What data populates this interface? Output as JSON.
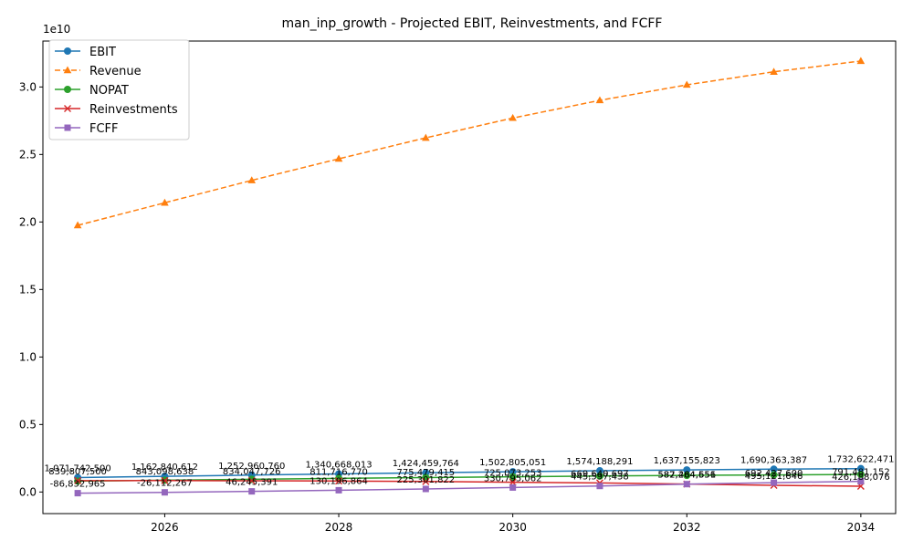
{
  "chart_data": {
    "type": "line",
    "title": "man_inp_growth - Projected EBIT, Reinvestments, and FCFF",
    "xlabel": "",
    "ylabel": "",
    "y_offset_label": "1e10",
    "x": [
      2025,
      2026,
      2027,
      2028,
      2029,
      2030,
      2031,
      2032,
      2033,
      2034
    ],
    "xlim": [
      2024.6,
      2034.4
    ],
    "ylim": [
      -1600000000.0,
      33400000000.0
    ],
    "x_ticks": [
      2026,
      2028,
      2030,
      2032,
      2034
    ],
    "y_ticks": [
      0,
      5000000000.0,
      10000000000.0,
      15000000000.0,
      20000000000.0,
      25000000000.0,
      30000000000.0
    ],
    "x_tick_labels": [
      "2026",
      "2028",
      "2030",
      "2032",
      "2034"
    ],
    "y_tick_labels": [
      "0.0",
      "0.5",
      "1.0",
      "1.5",
      "2.0",
      "2.5",
      "3.0"
    ],
    "grid": false,
    "legend_position": "top-left",
    "series": [
      {
        "name": "EBIT",
        "color": "#1f77b4",
        "marker": "circle",
        "dashed": false,
        "values": [
          1071742500,
          1162840612,
          1252960760,
          1340668013,
          1424459764,
          1502805051,
          1574188291,
          1637155823,
          1690363387,
          1732622471
        ],
        "labels": [
          "1,071,742,500",
          "1,162,840,612",
          "1,252,960,760",
          "1,340,668,013",
          "1,424,459,764",
          "1,502,805,051",
          "1,574,188,291",
          "1,637,155,823",
          "1,690,363,387",
          "1,732,622,471"
        ]
      },
      {
        "name": "Revenue",
        "color": "#ff7f0e",
        "marker": "triangle",
        "dashed": true,
        "values": [
          19750000000,
          21420000000,
          23080000000,
          24680000000,
          26230000000,
          27700000000,
          29010000000,
          30160000000,
          31120000000,
          31920000000
        ],
        "labels": []
      },
      {
        "name": "NOPAT",
        "color": "#2ca02c",
        "marker": "circle",
        "dashed": false,
        "values": [
          803806875,
          872130459,
          939720570,
          1005501010,
          1068344823,
          1127103788,
          1180641218,
          1227866867,
          1267772540,
          1299466853
        ],
        "labels": []
      },
      {
        "name": "Reinvestments",
        "color": "#d62728",
        "marker": "x",
        "dashed": false,
        "values": [
          839807500,
          843098638,
          834047726,
          811716770,
          775479415,
          725073253,
          669640697,
          587264651,
          495121646,
          426188076
        ],
        "labels": [
          "839,807,500",
          "843,098,638",
          "834,047,726",
          "811,716,770",
          "775,479,415",
          "725,073,253",
          "669,640,697",
          "587,264,651",
          "495,121,646",
          "426,188,076"
        ]
      },
      {
        "name": "FCFF",
        "color": "#9467bd",
        "marker": "square",
        "dashed": false,
        "values": [
          -86832965,
          -26112267,
          46245391,
          130196864,
          225301822,
          330795062,
          445597438,
          582484556,
          692427600,
          791481152
        ],
        "labels": [
          "-86,832,965",
          "-26,112,267",
          "46,245,391",
          "130,196,864",
          "225,301,822",
          "330,795,062",
          "445,597,438",
          "582,484,556",
          "692,427,600",
          "791,481,152"
        ]
      }
    ]
  }
}
